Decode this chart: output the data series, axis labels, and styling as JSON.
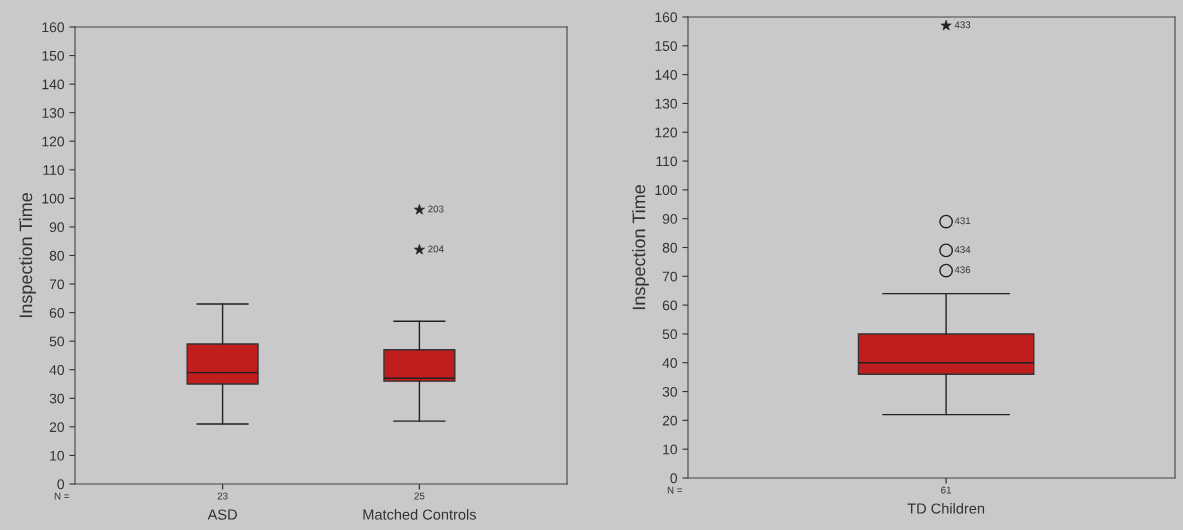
{
  "chart_data": [
    {
      "type": "box",
      "ylabel": "Inspection Time",
      "categories": [
        "ASD",
        "Matched Controls"
      ],
      "ylim": [
        0,
        160
      ],
      "yticks": [
        0,
        10,
        20,
        30,
        40,
        50,
        60,
        70,
        80,
        90,
        100,
        110,
        120,
        130,
        140,
        150,
        160
      ],
      "series": [
        {
          "color": "#c01e1e",
          "boxes": [
            {
              "low": 21,
              "q1": 35,
              "median": 39,
              "q3": 49,
              "high": 63
            },
            {
              "low": 22,
              "q1": 36,
              "median": 37,
              "q3": 47,
              "high": 57
            }
          ]
        },
        {
          "type": "scatter",
          "marker": "star",
          "color": "#222222",
          "name": "203",
          "x": [
            "Matched Controls"
          ],
          "values": [
            96
          ]
        },
        {
          "type": "scatter",
          "marker": "star",
          "color": "#222222",
          "name": "204",
          "x": [
            "Matched Controls"
          ],
          "values": [
            82
          ]
        }
      ],
      "annotations": [
        "N =",
        "23",
        "25"
      ]
    },
    {
      "type": "box",
      "ylabel": "Inspection Time",
      "categories": [
        "TD Children"
      ],
      "ylim": [
        0,
        160
      ],
      "yticks": [
        0,
        10,
        20,
        30,
        40,
        50,
        60,
        70,
        80,
        90,
        100,
        110,
        120,
        130,
        140,
        150,
        160
      ],
      "series": [
        {
          "color": "#c01e1e",
          "boxes": [
            {
              "low": 22,
              "q1": 36,
              "median": 40,
              "q3": 50,
              "high": 64
            }
          ]
        },
        {
          "type": "scatter",
          "marker": "circle",
          "color": "#222222",
          "name": "431",
          "x": [
            "TD Children"
          ],
          "values": [
            89
          ]
        },
        {
          "type": "scatter",
          "marker": "circle",
          "color": "#222222",
          "name": "434",
          "x": [
            "TD Children"
          ],
          "values": [
            79
          ]
        },
        {
          "type": "scatter",
          "marker": "circle",
          "color": "#222222",
          "name": "436",
          "x": [
            "TD Children"
          ],
          "values": [
            72
          ]
        },
        {
          "type": "scatter",
          "marker": "star",
          "color": "#222222",
          "name": "433",
          "x": [
            "TD Children"
          ],
          "values": [
            157
          ]
        }
      ],
      "annotations": [
        "N =",
        "61"
      ]
    }
  ]
}
